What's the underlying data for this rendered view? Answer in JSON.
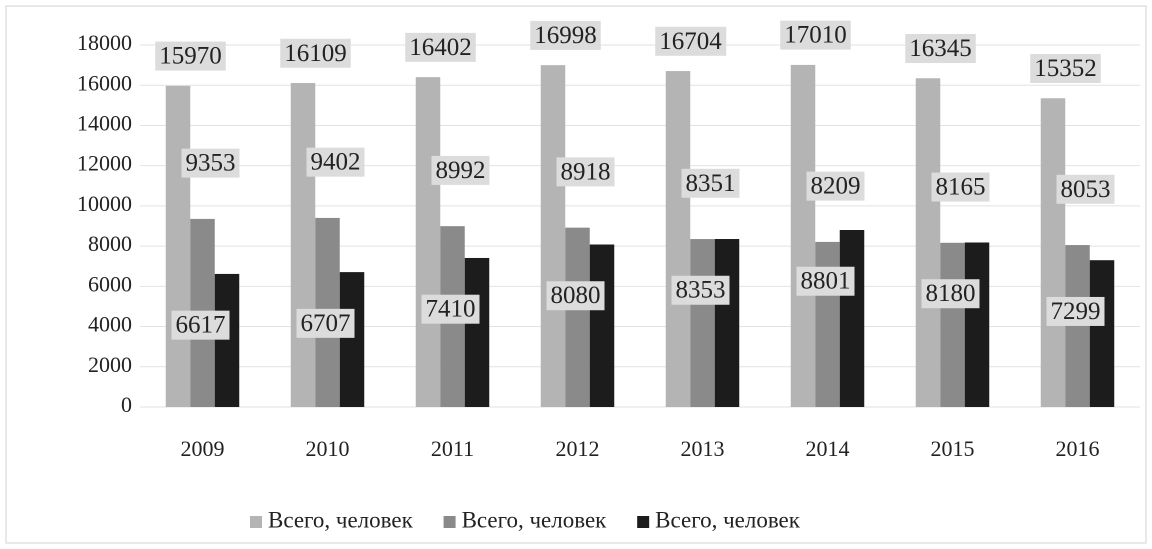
{
  "chart_data": {
    "type": "bar",
    "categories": [
      "2009",
      "2010",
      "2011",
      "2012",
      "2013",
      "2014",
      "2015",
      "2016"
    ],
    "series": [
      {
        "name": "Всего, человек",
        "color": "#b4b4b4",
        "values": [
          15970,
          16109,
          16402,
          16998,
          16704,
          17010,
          16345,
          15352
        ]
      },
      {
        "name": "Всего, человек",
        "color": "#8a8a8a",
        "values": [
          9353,
          9402,
          8992,
          8918,
          8351,
          8209,
          8165,
          8053
        ]
      },
      {
        "name": "Всего, человек",
        "color": "#1c1c1c",
        "values": [
          6617,
          6707,
          7410,
          8080,
          8353,
          8801,
          8180,
          7299
        ]
      }
    ],
    "ylim": [
      0,
      18000
    ],
    "yticks": [
      0,
      2000,
      4000,
      6000,
      8000,
      10000,
      12000,
      14000,
      16000,
      18000
    ],
    "grid": true,
    "legend": "bottom"
  }
}
